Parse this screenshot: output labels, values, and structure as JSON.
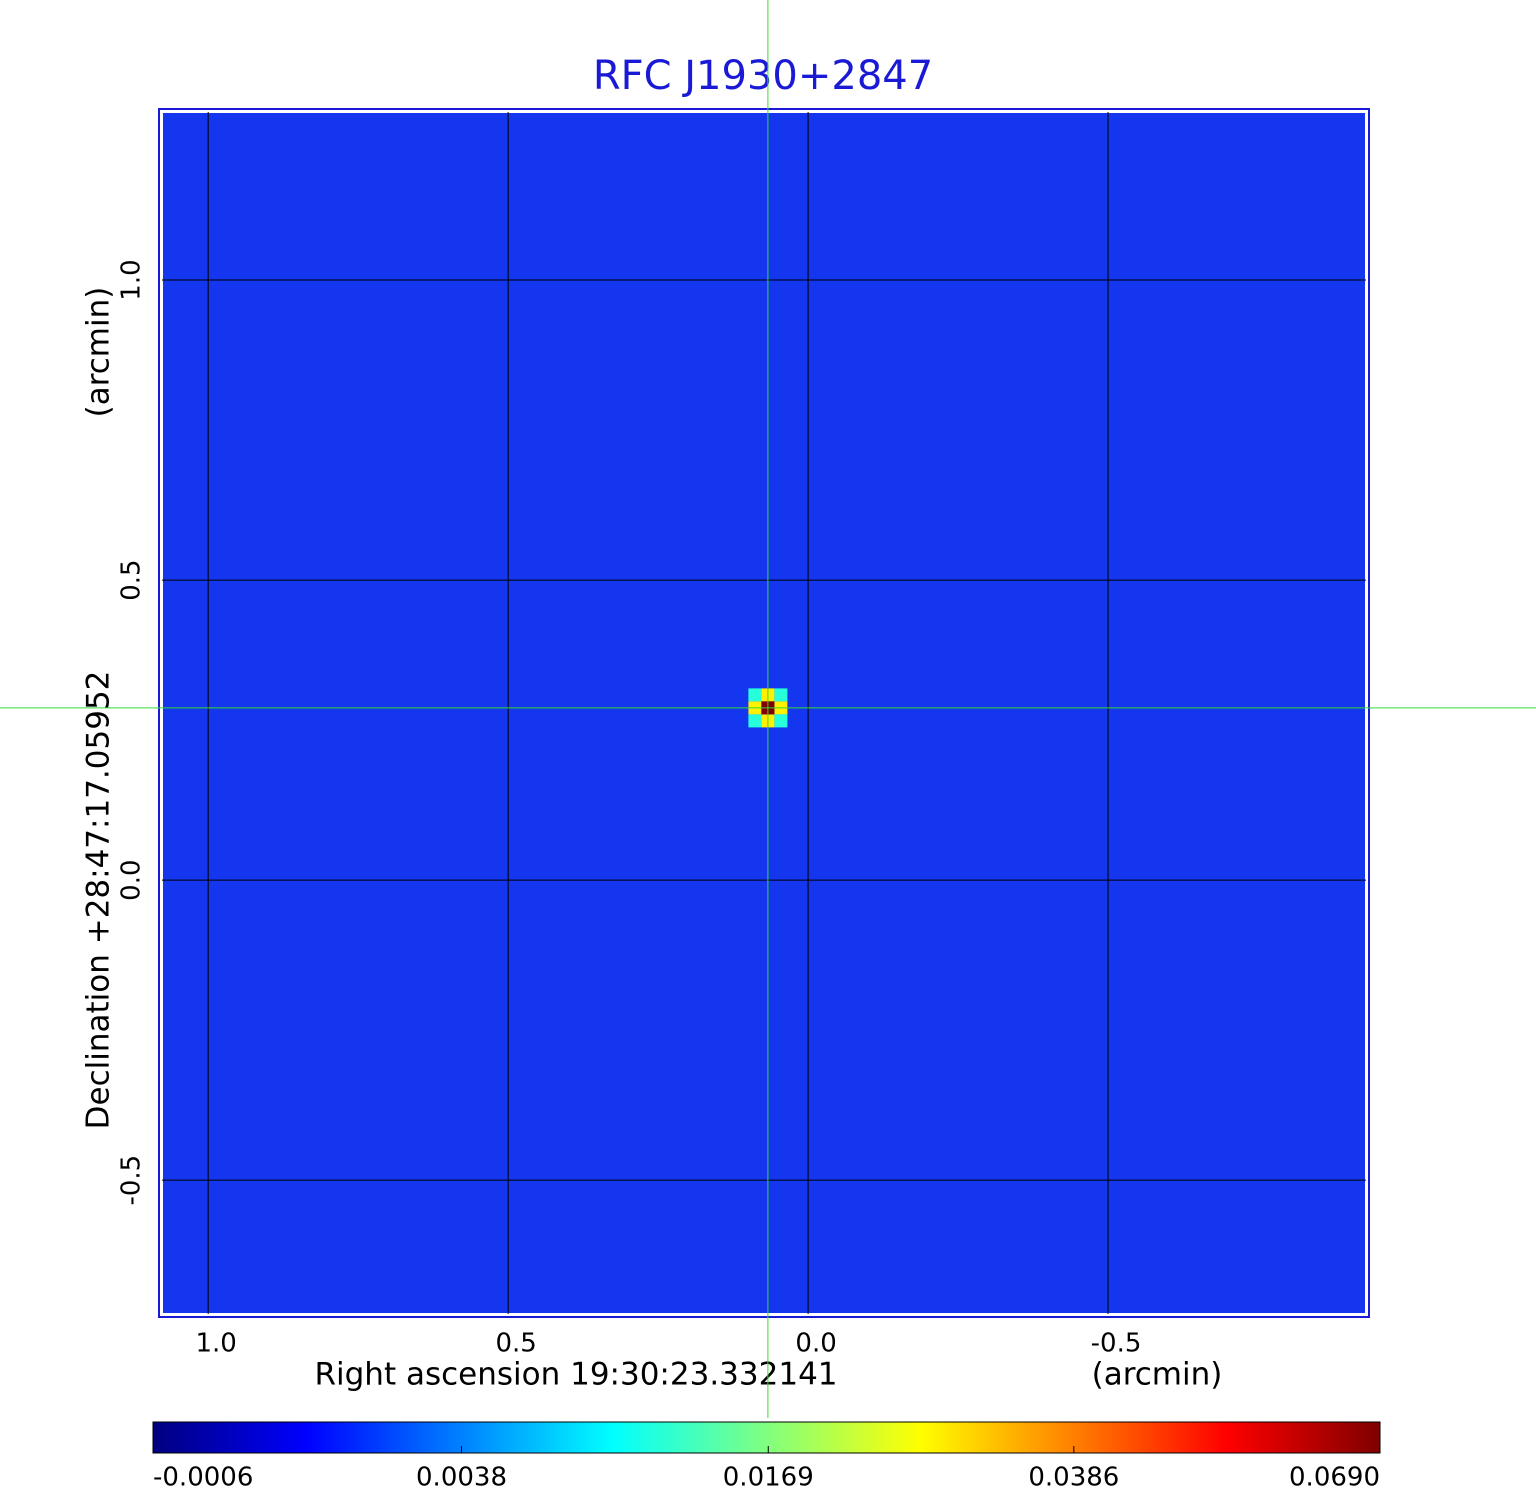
{
  "chart_data": {
    "type": "image",
    "title": "RFC J1930+2847",
    "x_label": "Right ascension  19:30:23.332141",
    "x_unit": "(arcmin)",
    "y_label": "Declination  +28:47:17.05952",
    "y_unit": "(arcmin)",
    "xlim": [
      1.077,
      -0.93
    ],
    "ylim": [
      -0.723,
      1.28
    ],
    "xticks": [
      {
        "value": 1,
        "label": "1.0"
      },
      0.5,
      {
        "value": 0,
        "label": "0.0"
      },
      -0.5
    ],
    "yticks": [
      -0.5,
      {
        "value": 0,
        "label": "0.0"
      },
      0.5,
      {
        "value": 1,
        "label": "1.0"
      }
    ],
    "grid": true,
    "image_color": "#1336ee",
    "source": {
      "x": 0.067,
      "y": 0.287,
      "peak": 0.069
    },
    "colorbar": {
      "lim": [
        -0.0006,
        0.069
      ],
      "scale": "sqrt",
      "ticks": [
        -0.0006,
        0.0038,
        0.0169,
        0.0386,
        {
          "value": 0.069,
          "label": "0.0690"
        }
      ],
      "colormap": [
        "#00007f",
        "#0000ff",
        "#0080ff",
        "#00ffff",
        "#80ff80",
        "#ffff00",
        "#ff8000",
        "#ff0000",
        "#7f0000"
      ]
    }
  }
}
